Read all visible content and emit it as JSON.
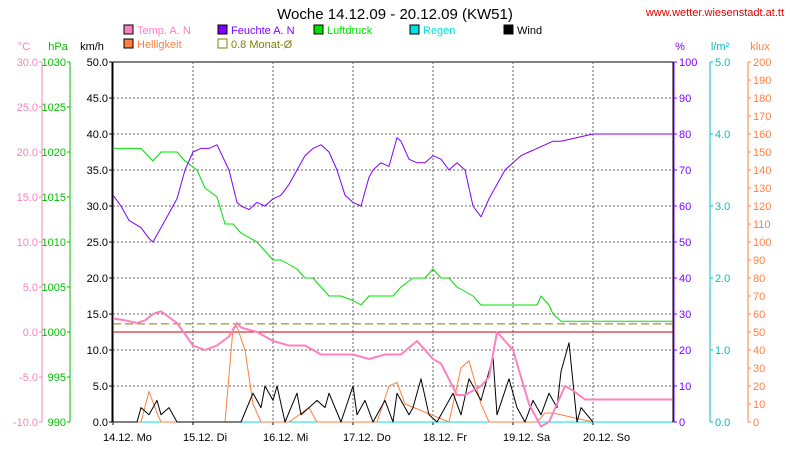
{
  "chart_data": {
    "type": "line",
    "title": "Woche 14.12.09 - 20.12.09 (KW51)",
    "source": "www.wetter.wiesenstadt.at.tt",
    "legend": [
      {
        "label": "Temp. A. N",
        "color": "#ff80c0"
      },
      {
        "label": "Feuchte A. N",
        "color": "#8000ff"
      },
      {
        "label": "Luftdruck",
        "color": "#00e000"
      },
      {
        "label": "Regen",
        "color": "#00e0e0"
      },
      {
        "label": "Wind",
        "color": "#000000"
      },
      {
        "label": "Helligkeit",
        "color": "#ff8040"
      },
      {
        "label": "0.8 Monat-Ø",
        "color": "#808000"
      }
    ],
    "axes": {
      "temp": {
        "unit": "°C",
        "min": -10,
        "max": 30,
        "ticks": [
          "-10.0",
          "-5.0",
          "0.0",
          "5.0",
          "10.0",
          "15.0",
          "20.0",
          "25.0",
          "30.0"
        ],
        "color": "#ff80c0"
      },
      "press": {
        "unit": "hPa",
        "min": 990,
        "max": 1030,
        "ticks": [
          "990",
          "995",
          "1000",
          "1005",
          "1010",
          "1015",
          "1020",
          "1025",
          "1030"
        ],
        "color": "#00c000"
      },
      "wind": {
        "unit": "km/h",
        "min": 0,
        "max": 50,
        "ticks": [
          "0.0",
          "5.0",
          "10.0",
          "15.0",
          "20.0",
          "25.0",
          "30.0",
          "35.0",
          "40.0",
          "45.0",
          "50.0"
        ],
        "color": "#000000"
      },
      "humid": {
        "unit": "%",
        "min": 0,
        "max": 100,
        "ticks": [
          "0",
          "10",
          "20",
          "30",
          "40",
          "50",
          "60",
          "70",
          "80",
          "90",
          "100"
        ],
        "color": "#8000ff"
      },
      "rain": {
        "unit": "l/m²",
        "min": 0,
        "max": 5,
        "ticks": [
          "0.0",
          "1.0",
          "2.0",
          "3.0",
          "4.0",
          "5.0"
        ],
        "color": "#00c0c0"
      },
      "lux": {
        "unit": "klux",
        "min": 0,
        "max": 200,
        "ticks": [
          "0",
          "10",
          "20",
          "30",
          "40",
          "50",
          "60",
          "70",
          "80",
          "90",
          "100",
          "110",
          "120",
          "130",
          "140",
          "150",
          "160",
          "170",
          "180",
          "190",
          "200"
        ],
        "color": "#ff8040"
      }
    },
    "x_ticks": [
      "14.12. Mo",
      "15.12. Di",
      "16.12. Mi",
      "17.12. Do",
      "18.12. Fr",
      "19.12. Sa",
      "20.12. So"
    ],
    "grid": true,
    "reference_lines": [
      {
        "name": "Temp 0°C",
        "axis": "temp",
        "value": 0,
        "color": "#cc0000"
      },
      {
        "name": "0.8 Monat-Ø",
        "axis": "press",
        "value": 1000.9,
        "color": "#808000",
        "dashed": true
      }
    ],
    "series": [
      {
        "name": "Feuchte A. N",
        "axis": "humid",
        "color": "#8000ff",
        "x": [
          0,
          0.1,
          0.2,
          0.35,
          0.45,
          0.5,
          0.6,
          0.7,
          0.8,
          0.9,
          1.0,
          1.1,
          1.2,
          1.3,
          1.45,
          1.55,
          1.6,
          1.7,
          1.8,
          1.9,
          2.0,
          2.1,
          2.2,
          2.3,
          2.4,
          2.5,
          2.6,
          2.7,
          2.8,
          2.9,
          3.0,
          3.1,
          3.2,
          3.25,
          3.35,
          3.45,
          3.55,
          3.6,
          3.7,
          3.8,
          3.9,
          4.0,
          4.1,
          4.2,
          4.3,
          4.4,
          4.5,
          4.6,
          4.7,
          4.8,
          4.9,
          5.0,
          5.1,
          5.2,
          5.3,
          5.4,
          5.5,
          5.6,
          5.8,
          6.0,
          6.5,
          6.99
        ],
        "values": [
          63,
          60,
          56,
          54,
          51,
          50,
          54,
          58,
          62,
          70,
          75,
          76,
          76,
          77,
          70,
          61,
          60,
          59,
          61,
          60,
          62,
          63,
          66,
          70,
          74,
          76,
          77,
          75,
          70,
          63,
          61,
          60,
          68,
          70,
          72,
          71,
          79,
          78,
          73,
          72,
          72,
          74,
          73,
          70,
          72,
          70,
          60,
          57,
          62,
          66,
          70,
          72,
          74,
          75,
          76,
          77,
          78,
          78,
          79,
          80,
          80,
          80
        ]
      },
      {
        "name": "Luftdruck",
        "axis": "press",
        "color": "#00e000",
        "x": [
          0,
          0.35,
          0.5,
          0.6,
          0.8,
          0.9,
          1.05,
          1.15,
          1.3,
          1.4,
          1.5,
          1.6,
          1.8,
          1.9,
          2.0,
          2.1,
          2.3,
          2.4,
          2.5,
          2.6,
          2.7,
          2.85,
          3.0,
          3.1,
          3.2,
          3.3,
          3.5,
          3.6,
          3.75,
          3.9,
          4.0,
          4.1,
          4.2,
          4.3,
          4.5,
          4.6,
          4.8,
          5.0,
          5.3,
          5.35,
          5.45,
          5.5,
          5.6,
          6.0,
          6.5,
          6.99
        ],
        "values": [
          1020.4,
          1020.4,
          1019,
          1020,
          1020,
          1019,
          1018,
          1016,
          1015,
          1012,
          1012,
          1011,
          1010,
          1009,
          1008,
          1008,
          1007,
          1006,
          1006,
          1005,
          1004,
          1004,
          1003.5,
          1003,
          1004,
          1004,
          1004,
          1005,
          1006,
          1006,
          1007,
          1006,
          1006,
          1005,
          1004,
          1003,
          1003,
          1003,
          1003,
          1004,
          1003,
          1002,
          1001.2,
          1001.2,
          1001.2,
          1001.2
        ]
      },
      {
        "name": "Temp. A. N",
        "axis": "temp",
        "color": "#ff80c0",
        "x": [
          0,
          0.15,
          0.3,
          0.4,
          0.5,
          0.6,
          0.8,
          1.0,
          1.15,
          1.3,
          1.45,
          1.55,
          1.6,
          1.8,
          2.0,
          2.2,
          2.4,
          2.6,
          2.8,
          3.0,
          3.2,
          3.4,
          3.6,
          3.8,
          3.9,
          4.0,
          4.1,
          4.3,
          4.4,
          4.6,
          4.7,
          4.8,
          5.0,
          5.2,
          5.35,
          5.45,
          5.55,
          5.65,
          5.75,
          5.9,
          6.0,
          6.5,
          6.99
        ],
        "values": [
          1.5,
          1.3,
          1,
          1.3,
          2,
          2.3,
          1,
          -1.5,
          -2,
          -1.5,
          -0.5,
          1,
          0.5,
          0,
          -1,
          -1.5,
          -1.5,
          -2.5,
          -2.5,
          -2.5,
          -3,
          -2.5,
          -2.5,
          -1,
          -2,
          -3,
          -3.5,
          -7,
          -7,
          -6,
          -5,
          0,
          -2,
          -8,
          -10.5,
          -10,
          -8,
          -6,
          -6.5,
          -7.5,
          -7.5,
          -7.5,
          -7.5
        ]
      },
      {
        "name": "Wind",
        "axis": "wind",
        "color": "#000000",
        "x": [
          0,
          0.3,
          0.35,
          0.45,
          0.55,
          0.6,
          0.7,
          0.8,
          1.0,
          1.6,
          1.75,
          1.85,
          1.9,
          2.0,
          2.05,
          2.15,
          2.3,
          2.35,
          2.45,
          2.55,
          2.65,
          2.7,
          2.85,
          3.0,
          3.05,
          3.15,
          3.25,
          3.4,
          3.5,
          3.55,
          3.7,
          3.75,
          3.85,
          3.95,
          4.05,
          4.15,
          4.25,
          4.35,
          4.45,
          4.6,
          4.75,
          4.8,
          4.95,
          5.05,
          5.15,
          5.25,
          5.35,
          5.45,
          5.55,
          5.6,
          5.7,
          5.8,
          5.85,
          6.0
        ],
        "values": [
          0,
          0,
          2,
          1,
          3,
          1,
          2,
          0,
          0,
          0,
          4,
          2,
          5,
          3,
          5,
          0,
          4,
          1,
          2,
          3,
          2,
          4,
          0,
          5,
          1,
          3,
          0,
          3,
          0,
          4,
          1,
          2,
          6,
          1,
          0,
          2,
          4,
          1,
          6,
          3,
          9,
          1,
          6,
          2,
          0,
          3,
          1,
          4,
          2,
          7,
          11,
          0,
          2,
          0
        ]
      },
      {
        "name": "Helligkeit",
        "axis": "lux",
        "color": "#ff8040",
        "x": [
          0,
          0.35,
          0.45,
          0.55,
          0.6,
          0.7,
          1.2,
          1.4,
          1.5,
          1.55,
          1.65,
          1.75,
          1.85,
          2.2,
          2.45,
          2.55,
          3.3,
          3.45,
          3.55,
          3.65,
          4.2,
          4.35,
          4.45,
          4.6,
          4.7,
          5.3,
          5.4,
          5.5,
          6.0
        ],
        "values": [
          0,
          0,
          17,
          5,
          0,
          0,
          0,
          0,
          52,
          53,
          40,
          10,
          0,
          0,
          8,
          0,
          0,
          20,
          22,
          10,
          0,
          30,
          34,
          10,
          0,
          0,
          5,
          5,
          0
        ]
      },
      {
        "name": "Regen",
        "axis": "rain",
        "color": "#00e0e0",
        "x": [
          0,
          6.99
        ],
        "values": [
          0,
          0
        ]
      }
    ]
  }
}
